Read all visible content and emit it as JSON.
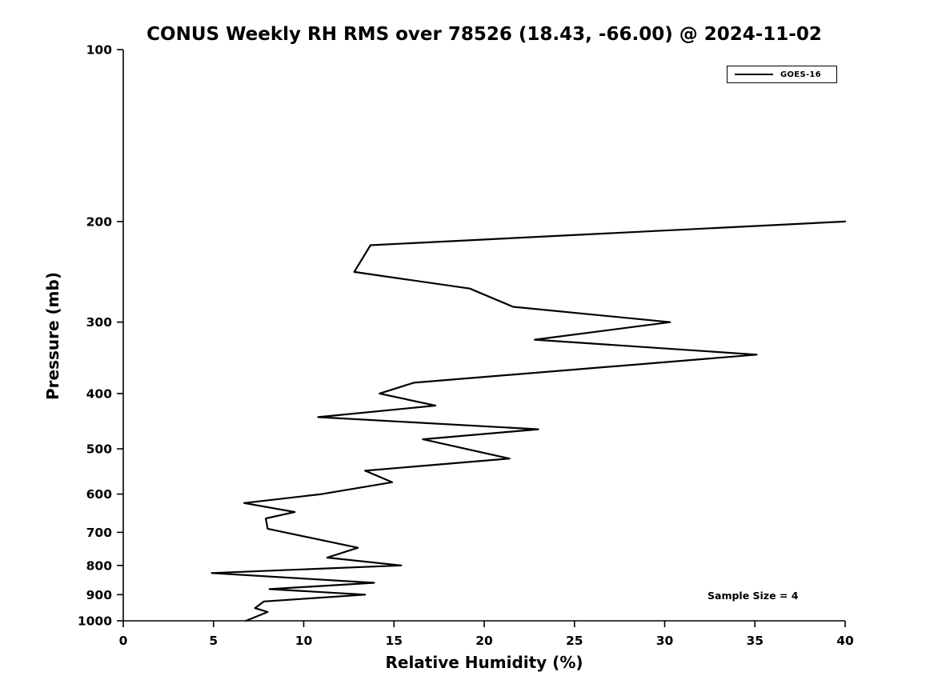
{
  "chart_data": {
    "type": "line",
    "title": "CONUS Weekly RH RMS over 78526 (18.43, -66.00) @ 2024-11-02",
    "xlabel": "Relative Humidity (%)",
    "ylabel": "Pressure (mb)",
    "xlim": [
      0,
      40
    ],
    "ylim": [
      100,
      1000
    ],
    "yscale": "log",
    "y_axis_reversed": true,
    "xticks": [
      0,
      5,
      10,
      15,
      20,
      25,
      30,
      35,
      40
    ],
    "yticks": [
      100,
      200,
      300,
      400,
      500,
      600,
      700,
      800,
      900,
      1000
    ],
    "grid": false,
    "line_color": "#000000",
    "background_color": "#ffffff",
    "legend": {
      "position": "top-right",
      "entries": [
        {
          "label": "GOES-16",
          "color": "#000000"
        }
      ]
    },
    "annotation": "Sample Size = 4",
    "series": [
      {
        "name": "GOES-16",
        "color": "#000000",
        "x": [
          40.0,
          13.7,
          12.8,
          19.2,
          21.6,
          30.3,
          22.8,
          35.1,
          16.1,
          14.2,
          17.3,
          10.8,
          23.0,
          16.6,
          21.4,
          13.4,
          14.9,
          11.0,
          6.7,
          9.5,
          7.9,
          8.0,
          13.0,
          11.3,
          15.4,
          4.9,
          13.9,
          8.1,
          13.4,
          7.8,
          7.3,
          8.0,
          6.8
        ],
        "y": [
          200,
          220,
          245,
          262,
          282,
          300,
          322,
          342,
          383,
          400,
          420,
          440,
          462,
          481,
          520,
          546,
          572,
          600,
          622,
          645,
          662,
          690,
          745,
          775,
          800,
          825,
          858,
          880,
          900,
          925,
          950,
          965,
          1000
        ]
      }
    ]
  }
}
